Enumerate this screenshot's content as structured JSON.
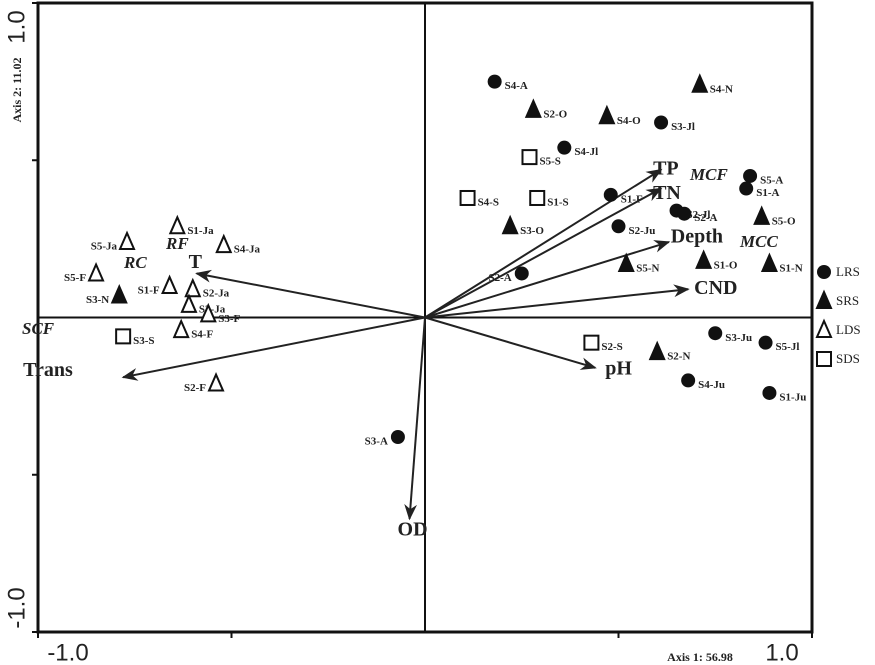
{
  "chart_data": {
    "type": "biplot",
    "x_label": "Axis 1: 56.98",
    "y_label": "Axis 2: 11.02",
    "xlim": [
      -1,
      1
    ],
    "ylim": [
      -1,
      1
    ],
    "xticks": [
      {
        "value": -1,
        "label": "-1.0"
      },
      {
        "value": -0.5,
        "label": null
      },
      {
        "value": 0.5,
        "label": null
      },
      {
        "value": 1,
        "label": "1.0"
      }
    ],
    "yticks": [
      {
        "value": -1,
        "label": "-1.0"
      },
      {
        "value": -0.5,
        "label": null
      },
      {
        "value": 0.5,
        "label": null
      },
      {
        "value": 1,
        "label": "1.0"
      }
    ],
    "series": [
      {
        "name": "LRS",
        "marker": "circle",
        "color": "#111",
        "point_labels": [
          "S4-A",
          "S3-Jl",
          "S4-Jl",
          "S5-A",
          "S1-A",
          "S1-F",
          "S2-Jl",
          "S2-A",
          "S2-Ju",
          "S2-A",
          "S3-Ju",
          "S5-Jl",
          "S4-Ju",
          "S1-Ju",
          "S3-A"
        ],
        "x": [
          0.18,
          0.61,
          0.36,
          0.84,
          0.83,
          0.48,
          0.65,
          0.67,
          0.5,
          0.25,
          0.75,
          0.88,
          0.68,
          0.89,
          -0.07
        ],
        "values": [
          0.75,
          0.62,
          0.54,
          0.45,
          0.41,
          0.39,
          0.34,
          0.33,
          0.29,
          0.14,
          -0.05,
          -0.08,
          -0.2,
          -0.24,
          -0.38
        ]
      },
      {
        "name": "SRS",
        "marker": "triangle-filled",
        "color": "#111",
        "point_labels": [
          "S4-N",
          "S2-O",
          "S4-O",
          "S3-O",
          "S5-O",
          "S1-O",
          "S1-N",
          "S5-N",
          "S2-N",
          "S3-N"
        ],
        "x": [
          0.71,
          0.28,
          0.47,
          0.22,
          0.87,
          0.72,
          0.89,
          0.52,
          0.6,
          -0.79
        ],
        "values": [
          0.74,
          0.66,
          0.64,
          0.29,
          0.32,
          0.18,
          0.17,
          0.17,
          -0.11,
          0.07
        ]
      },
      {
        "name": "LDS",
        "marker": "triangle-open",
        "color": "#111",
        "point_labels": [
          "S1-Ja",
          "S5-Ja",
          "S4-Ja",
          "S5-F",
          "S1-F",
          "S2-Ja",
          "S3-Ja",
          "S3-F",
          "S4-F",
          "S2-F"
        ],
        "x": [
          -0.64,
          -0.77,
          -0.52,
          -0.85,
          -0.66,
          -0.6,
          -0.61,
          -0.56,
          -0.63,
          -0.54
        ],
        "values": [
          0.29,
          0.24,
          0.23,
          0.14,
          0.1,
          0.09,
          0.04,
          0.01,
          -0.04,
          -0.21
        ]
      },
      {
        "name": "SDS",
        "marker": "square-open",
        "color": "#111",
        "point_labels": [
          "S5-S",
          "S4-S",
          "S1-S",
          "S3-S",
          "S2-S"
        ],
        "x": [
          0.27,
          0.11,
          0.29,
          -0.78,
          0.43
        ],
        "values": [
          0.51,
          0.38,
          0.38,
          -0.06,
          -0.08
        ]
      }
    ],
    "vectors": [
      {
        "name": "TP",
        "x": 0.61,
        "y": 0.47
      },
      {
        "name": "TN",
        "x": 0.61,
        "y": 0.41
      },
      {
        "name": "Depth",
        "x": 0.63,
        "y": 0.24
      },
      {
        "name": "CND",
        "x": 0.68,
        "y": 0.09
      },
      {
        "name": "pH",
        "x": 0.44,
        "y": -0.16
      },
      {
        "name": "OD",
        "x": -0.04,
        "y": -0.64
      },
      {
        "name": "Trans",
        "x": -0.78,
        "y": -0.19
      },
      {
        "name": "T",
        "x": -0.59,
        "y": 0.14
      }
    ],
    "annotations": [
      "MCF",
      "MCC",
      "RC",
      "RF",
      "SCF"
    ]
  }
}
